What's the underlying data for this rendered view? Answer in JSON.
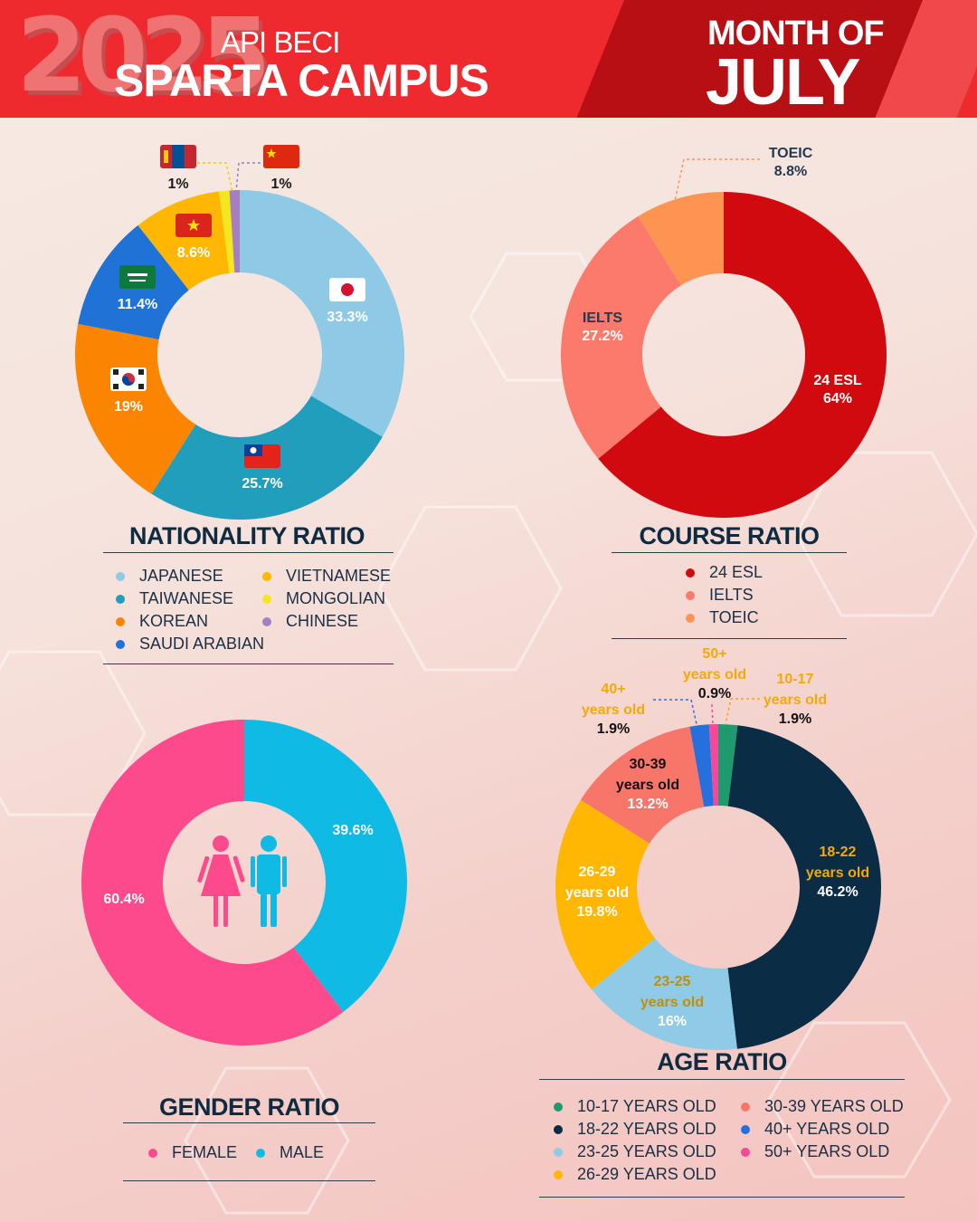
{
  "header": {
    "year": "2025",
    "subtitle": "API BECI",
    "title": "SPARTA CAMPUS",
    "month_prefix": "MONTH OF",
    "month": "JULY"
  },
  "colors": {
    "header_red": "#ee2a2f",
    "header_dark": "#b80f15",
    "title_navy": "#0f2b41"
  },
  "chart_data": [
    {
      "type": "pie",
      "variant": "donut",
      "title": "NATIONALITY RATIO",
      "categories": [
        "JAPANESE",
        "TAIWANESE",
        "KOREAN",
        "SAUDI ARABIAN",
        "VIETNAMESE",
        "MONGOLIAN",
        "CHINESE"
      ],
      "values": [
        33.3,
        25.7,
        19,
        11.4,
        8.6,
        1,
        1
      ],
      "labels": [
        "33.3%",
        "25.7%",
        "19%",
        "11.4%",
        "8.6%",
        "1%",
        "1%"
      ],
      "colors": [
        "#8ecae6",
        "#219ebc",
        "#fb8500",
        "#1f72d6",
        "#ffb703",
        "#f5e71f",
        "#a57fc0"
      ],
      "flag_icons": [
        "japan-flag-icon",
        "taiwan-flag-icon",
        "korea-flag-icon",
        "saudi-flag-icon",
        "vietnam-flag-icon",
        "mongolia-flag-icon",
        "china-flag-icon"
      ]
    },
    {
      "type": "pie",
      "title": "COURSE RATIO",
      "categories": [
        "24 ESL",
        "IELTS",
        "TOEIC"
      ],
      "values": [
        64,
        27.2,
        8.8
      ],
      "labels": [
        "64%",
        "27.2%",
        "8.8%"
      ],
      "colors": [
        "#d10a0f",
        "#fb7a6b",
        "#fd9452"
      ]
    },
    {
      "type": "pie",
      "variant": "donut",
      "title": "GENDER RATIO",
      "categories": [
        "FEMALE",
        "MALE"
      ],
      "values": [
        60.4,
        39.6
      ],
      "labels": [
        "60.4%",
        "39.6%"
      ],
      "colors": [
        "#fd4a8c",
        "#0fbbe4"
      ]
    },
    {
      "type": "pie",
      "variant": "donut",
      "title": "AGE RATIO",
      "categories": [
        "10-17  YEARS OLD",
        "18-22 YEARS OLD",
        "23-25 YEARS OLD",
        "26-29 YEARS OLD",
        "30-39 YEARS OLD",
        "40+ YEARS OLD",
        "50+ YEARS OLD"
      ],
      "values": [
        1.9,
        46.2,
        16,
        19.8,
        13.2,
        1.9,
        0.9
      ],
      "colors": [
        "#1e9a6e",
        "#0a2c45",
        "#8fcbe6",
        "#ffb703",
        "#f8756a",
        "#2570dd",
        "#f5489a"
      ],
      "slice_labels": [
        {
          "group": "10-17",
          "unit": "years old",
          "value": "1.9%"
        },
        {
          "group": "18-22",
          "unit": "years old",
          "value": "46.2%"
        },
        {
          "group": "23-25",
          "unit": "years old",
          "value": "16%"
        },
        {
          "group": "26-29",
          "unit": "years old",
          "value": "19.8%"
        },
        {
          "group": "30-39",
          "unit": "years old",
          "value": "13.2%"
        },
        {
          "group": "40+",
          "unit": "years old",
          "value": "1.9%"
        },
        {
          "group": "50+",
          "unit": "years old",
          "value": "0.9%"
        }
      ]
    }
  ],
  "legends": {
    "nationality": [
      {
        "label": "JAPANESE",
        "color": "#8ecae6"
      },
      {
        "label": "TAIWANESE",
        "color": "#219ebc"
      },
      {
        "label": "KOREAN",
        "color": "#fb8500"
      },
      {
        "label": "SAUDI ARABIAN",
        "color": "#1f72d6"
      },
      {
        "label": "VIETNAMESE",
        "color": "#ffb703"
      },
      {
        "label": "MONGOLIAN",
        "color": "#f5e71f"
      },
      {
        "label": "CHINESE",
        "color": "#a57fc0"
      }
    ],
    "course": [
      {
        "label": "24 ESL",
        "color": "#d10a0f"
      },
      {
        "label": "IELTS",
        "color": "#fb7a6b"
      },
      {
        "label": "TOEIC",
        "color": "#fd9452"
      }
    ],
    "gender": [
      {
        "label": "FEMALE",
        "color": "#fd4a8c"
      },
      {
        "label": "MALE",
        "color": "#0fbbe4"
      }
    ],
    "age": [
      {
        "label": "10-17  YEARS OLD",
        "color": "#1e9a6e"
      },
      {
        "label": "18-22 YEARS OLD",
        "color": "#0a2c45"
      },
      {
        "label": "23-25 YEARS OLD",
        "color": "#8fcbe6"
      },
      {
        "label": "26-29 YEARS OLD",
        "color": "#ffb703"
      },
      {
        "label": "30-39 YEARS OLD",
        "color": "#f8756a"
      },
      {
        "label": "40+ YEARS OLD",
        "color": "#2570dd"
      },
      {
        "label": "50+ YEARS OLD",
        "color": "#f5489a"
      }
    ]
  }
}
